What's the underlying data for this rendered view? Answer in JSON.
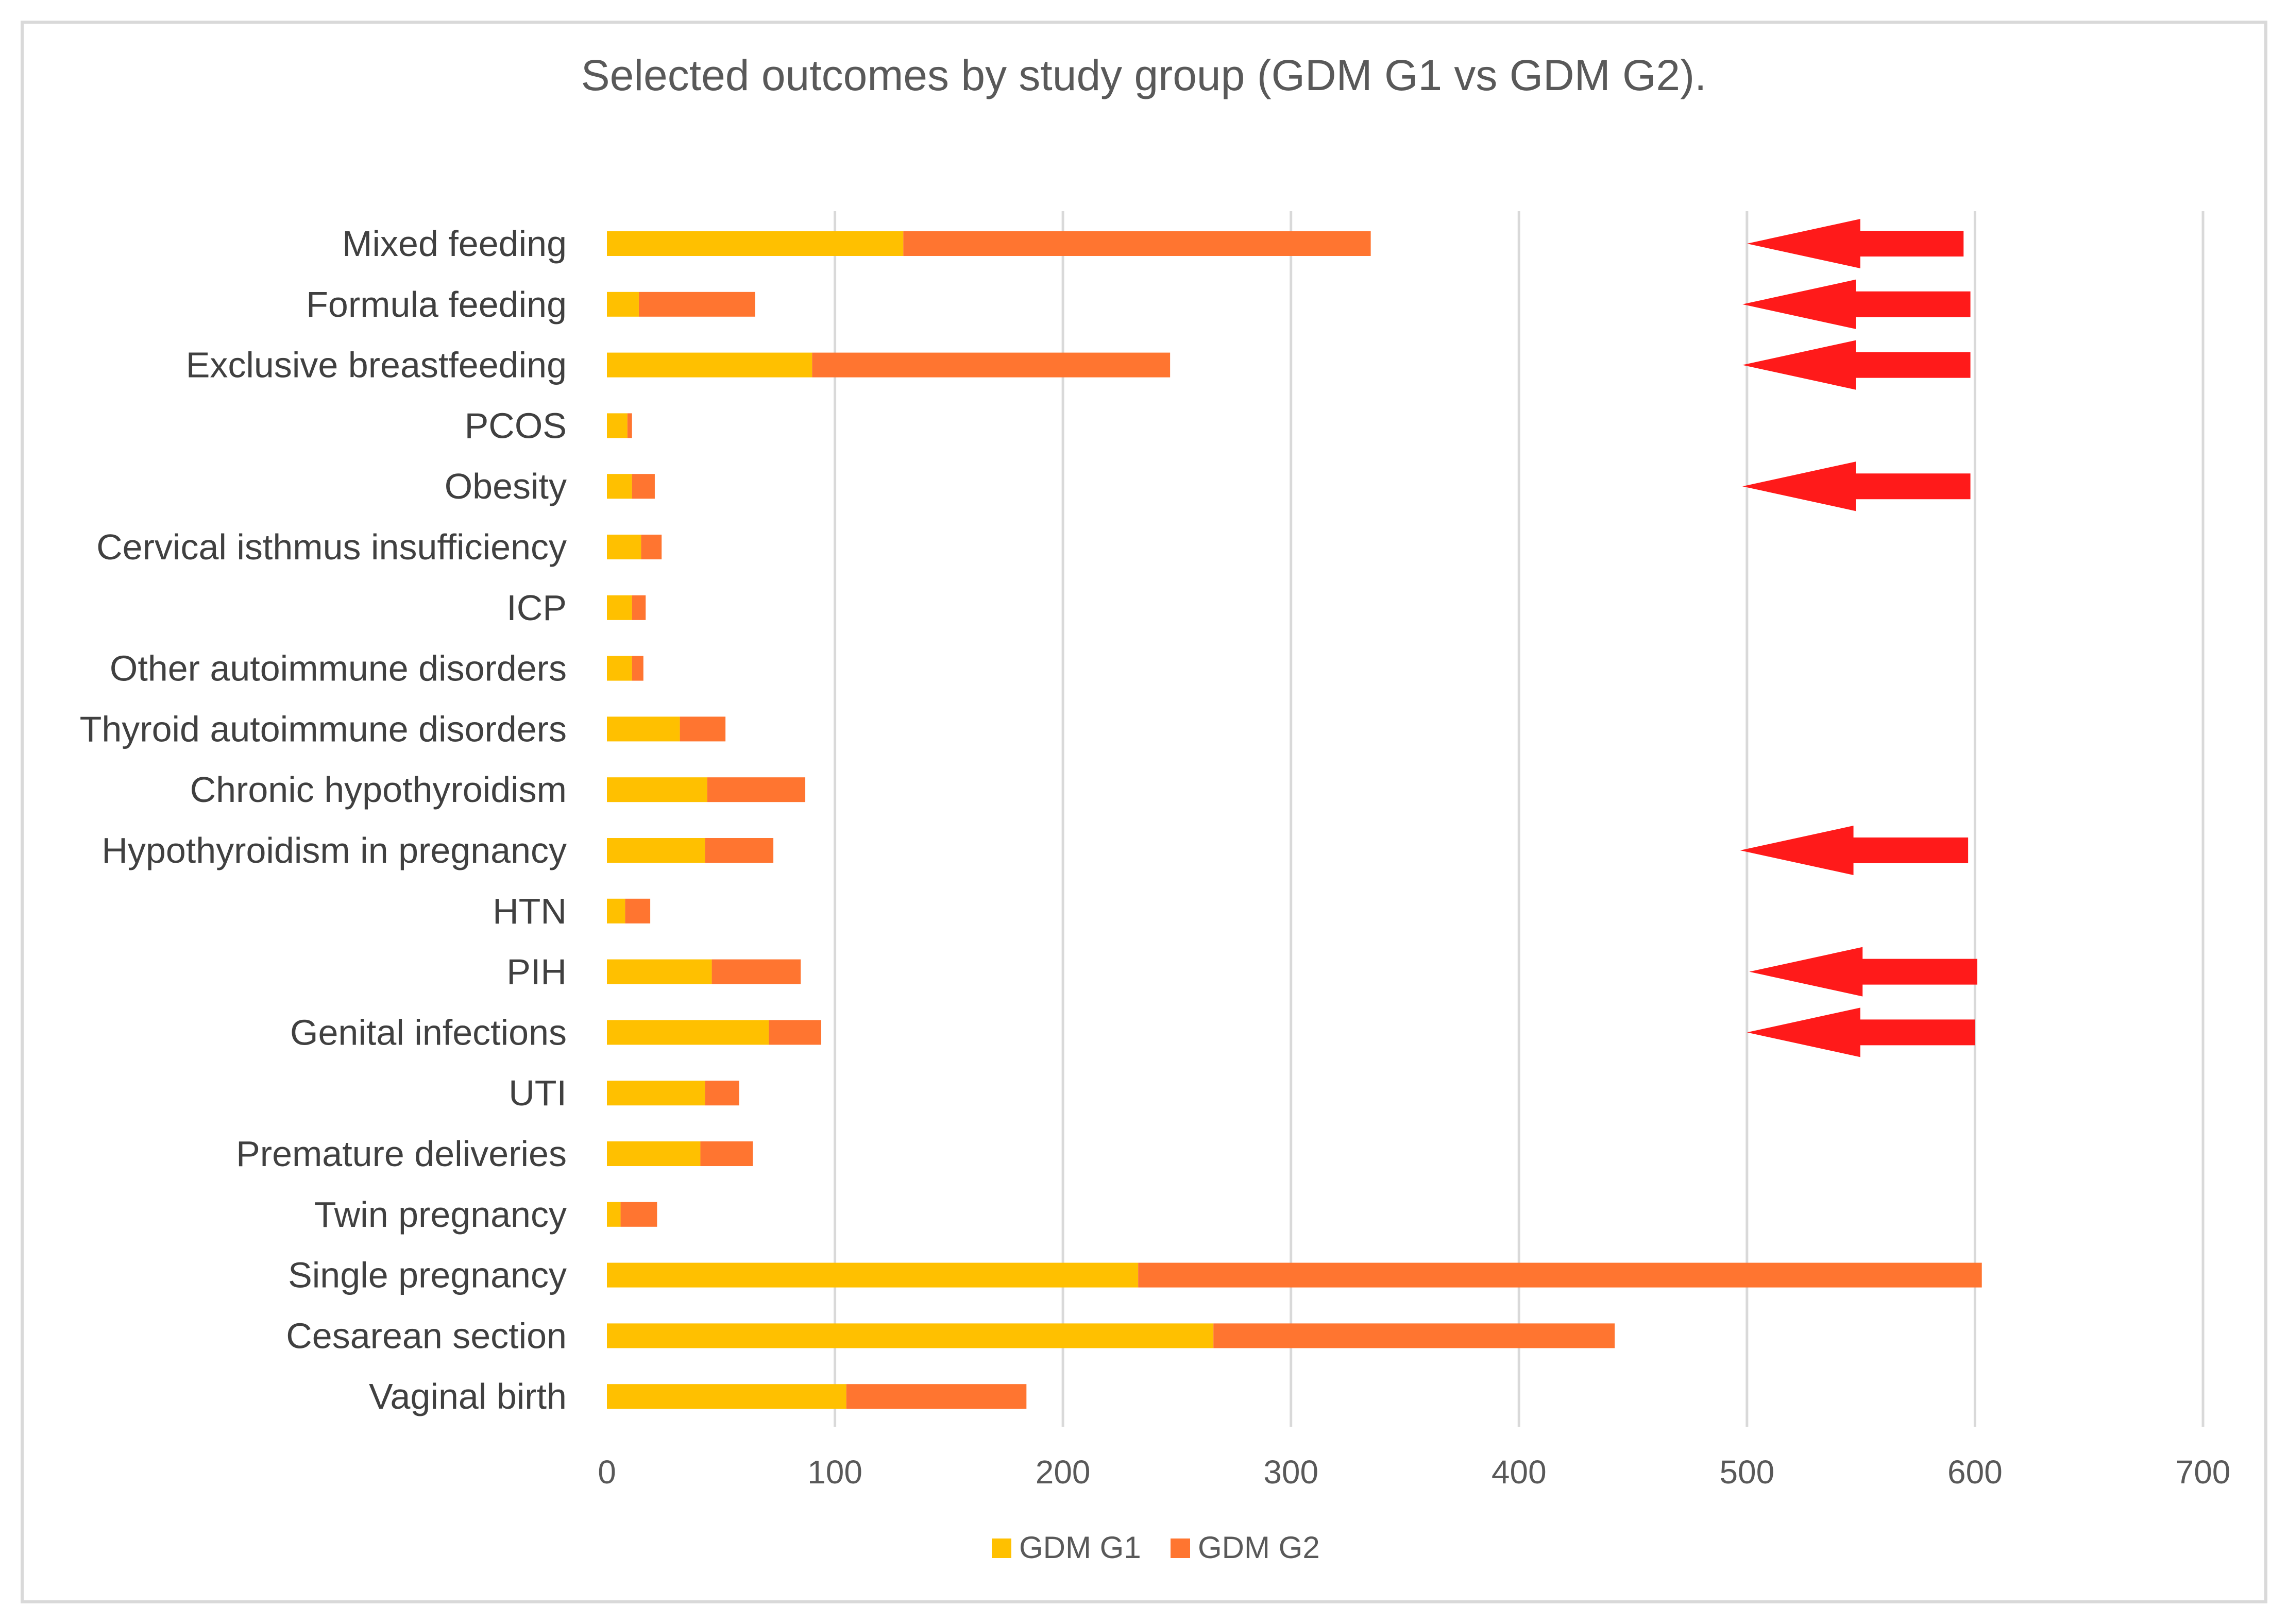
{
  "chart_data": {
    "type": "bar",
    "orientation": "horizontal",
    "stacked": true,
    "title": "Selected outcomes by study group (GDM G1 vs GDM G2).",
    "categories": [
      "Mixed feeding",
      "Formula feeding",
      "Exclusive breastfeeding",
      "PCOS",
      "Obesity",
      "Cervical isthmus insufficiency",
      "ICP",
      "Other autoimmune disorders",
      "Thyroid autoimmune disorders",
      "Chronic hypothyroidism",
      "Hypothyroidism in pregnancy",
      "HTN",
      "PIH",
      "Genital infections",
      "UTI",
      "Premature deliveries",
      "Twin pregnancy",
      "Single pregnancy",
      "Cesarean section",
      "Vaginal birth"
    ],
    "series": [
      {
        "name": "GDM G1",
        "color": "#FFC000",
        "values": [
          130,
          14,
          90,
          9,
          11,
          15,
          11,
          11,
          32,
          44,
          43,
          8,
          46,
          71,
          43,
          41,
          6,
          233,
          266,
          105
        ]
      },
      {
        "name": "GDM G2",
        "color": "#FF7530",
        "values": [
          205,
          51,
          157,
          2,
          10,
          9,
          6,
          5,
          20,
          43,
          30,
          11,
          39,
          23,
          15,
          23,
          16,
          370,
          176,
          79
        ]
      }
    ],
    "x_ticks": [
      "0",
      "100",
      "200",
      "300",
      "400",
      "500",
      "600",
      "700"
    ],
    "xlim": [
      0,
      700
    ],
    "grid": "vertical",
    "legend": "bottom",
    "annotations": {
      "arrow_color": "#FF1A1A",
      "arrows": [
        {
          "category": "Mixed feeding",
          "from": 595,
          "to": 500
        },
        {
          "category": "Formula feeding",
          "from": 598,
          "to": 498
        },
        {
          "category": "Exclusive breastfeeding",
          "from": 598,
          "to": 498
        },
        {
          "category": "Obesity",
          "from": 598,
          "to": 498
        },
        {
          "category": "Hypothyroidism in pregnancy",
          "from": 597,
          "to": 497
        },
        {
          "category": "PIH",
          "from": 601,
          "to": 501
        },
        {
          "category": "Genital infections",
          "from": 600,
          "to": 500
        }
      ]
    }
  }
}
